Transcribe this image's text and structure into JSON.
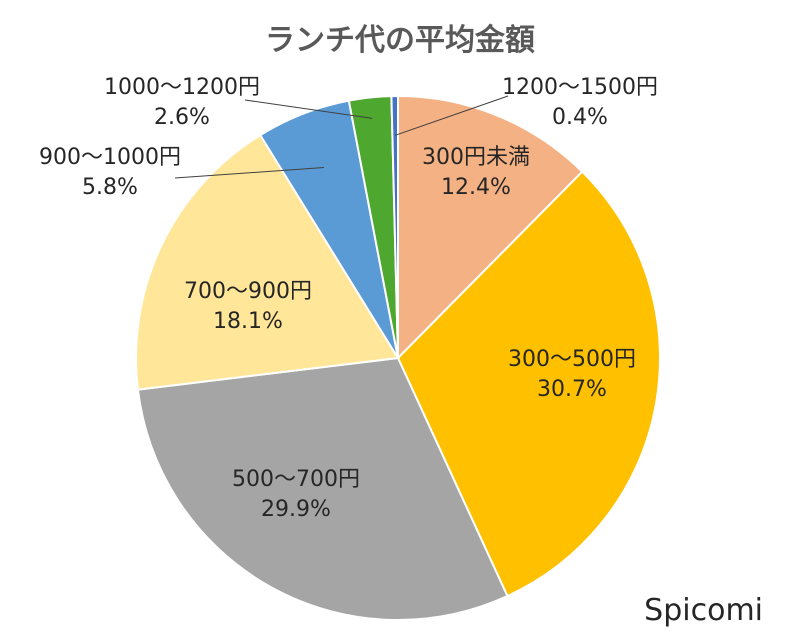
{
  "chart_data": {
    "type": "pie",
    "title": "ランチ代の平均金額",
    "start_angle_deg": 0,
    "direction": "clockwise",
    "slices": [
      {
        "label": "300円未満",
        "value": 12.4,
        "value_label": "12.4%",
        "color": "#F4B183"
      },
      {
        "label": "300〜500円",
        "value": 30.7,
        "value_label": "30.7%",
        "color": "#FFC000"
      },
      {
        "label": "500〜700円",
        "value": 29.9,
        "value_label": "29.9%",
        "color": "#A5A5A5"
      },
      {
        "label": "700〜900円",
        "value": 18.1,
        "value_label": "18.1%",
        "color": "#FFE699"
      },
      {
        "label": "900〜1000円",
        "value": 5.8,
        "value_label": "5.8%",
        "color": "#5B9BD5"
      },
      {
        "label": "1000〜1200円",
        "value": 2.6,
        "value_label": "2.6%",
        "color": "#4EA72E"
      },
      {
        "label": "1200〜1500円",
        "value": 0.4,
        "value_label": "0.4%",
        "color": "#4472C4"
      }
    ],
    "legend": "none"
  },
  "credit": {
    "text": "Spicomi"
  }
}
